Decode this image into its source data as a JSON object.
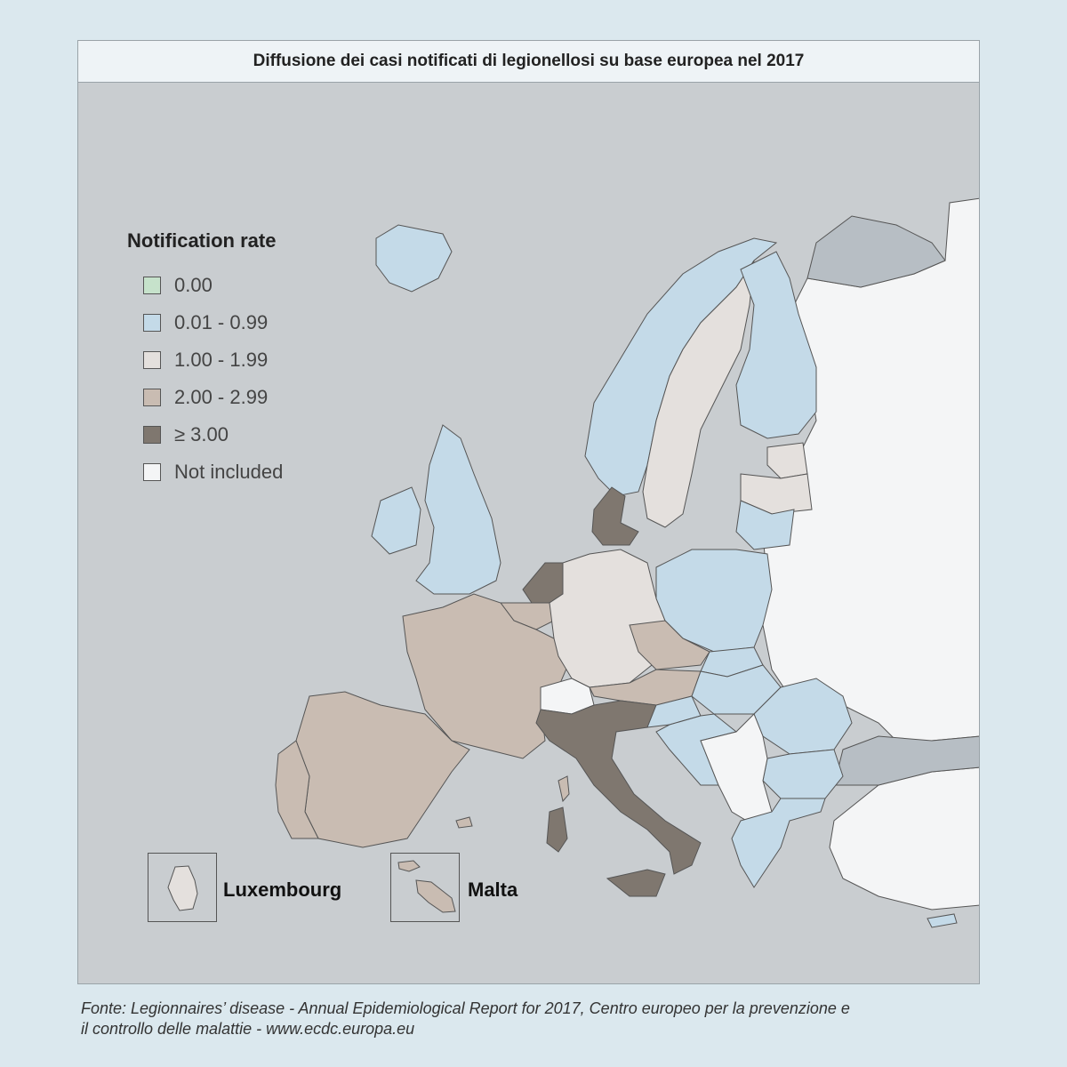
{
  "title": "Diffusione dei casi notificati di legionellosi su base europea nel 2017",
  "legend": {
    "title": "Notification rate",
    "items": [
      {
        "label": "0.00",
        "color": "#c6e2cb"
      },
      {
        "label": "0.01 - 0.99",
        "color": "#c4dae8"
      },
      {
        "label": "1.00 - 1.99",
        "color": "#e4e0dd"
      },
      {
        "label": "2.00 - 2.99",
        "color": "#c9bcb2"
      },
      {
        "label": "≥ 3.00",
        "color": "#7f776f"
      },
      {
        "label": "Not included",
        "color": "#f4f5f6"
      }
    ]
  },
  "insets": {
    "luxembourg": {
      "label": "Luxembourg",
      "class": "1.00 - 1.99"
    },
    "malta": {
      "label": "Malta",
      "class": "2.00 - 2.99"
    }
  },
  "map_colors": {
    "sea": "#c9cdd0",
    "non_eu_land": "#b7bec4"
  },
  "source": {
    "line1": "Fonte: Legionnaires’ disease - Annual Epidemiological Report for 2017, Centro europeo per la prevenzione e",
    "line2": "il controllo delle malattie - www.ecdc.europa.eu"
  }
}
